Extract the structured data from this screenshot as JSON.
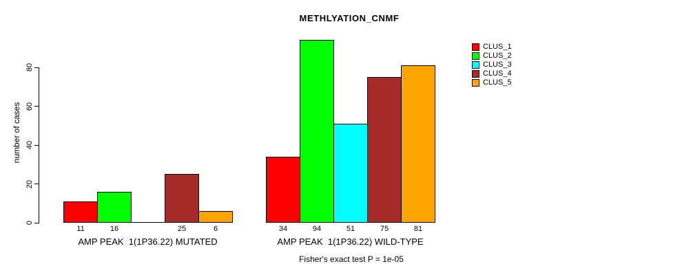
{
  "chart_data": {
    "type": "bar",
    "title": "METHLYATION_CNMF",
    "ylabel": "number of cases",
    "xlabel": "",
    "footer": "Fisher's exact test P = 1e-05",
    "ylim": [
      0,
      94
    ],
    "yticks": [
      0,
      20,
      40,
      60,
      80
    ],
    "grid": false,
    "legend_position": "right",
    "series": [
      {
        "name": "CLUS_1",
        "color": "#FF0000"
      },
      {
        "name": "CLUS_2",
        "color": "#00FF00"
      },
      {
        "name": "CLUS_3",
        "color": "#00FFFF"
      },
      {
        "name": "CLUS_4",
        "color": "#A52A2A"
      },
      {
        "name": "CLUS_5",
        "color": "#FFA500"
      }
    ],
    "groups": [
      {
        "label": "AMP PEAK  1(1P36.22) MUTATED",
        "values": [
          11,
          16,
          0,
          25,
          6
        ]
      },
      {
        "label": "AMP PEAK  1(1P36.22) WILD-TYPE",
        "values": [
          34,
          94,
          51,
          75,
          81
        ]
      }
    ]
  }
}
